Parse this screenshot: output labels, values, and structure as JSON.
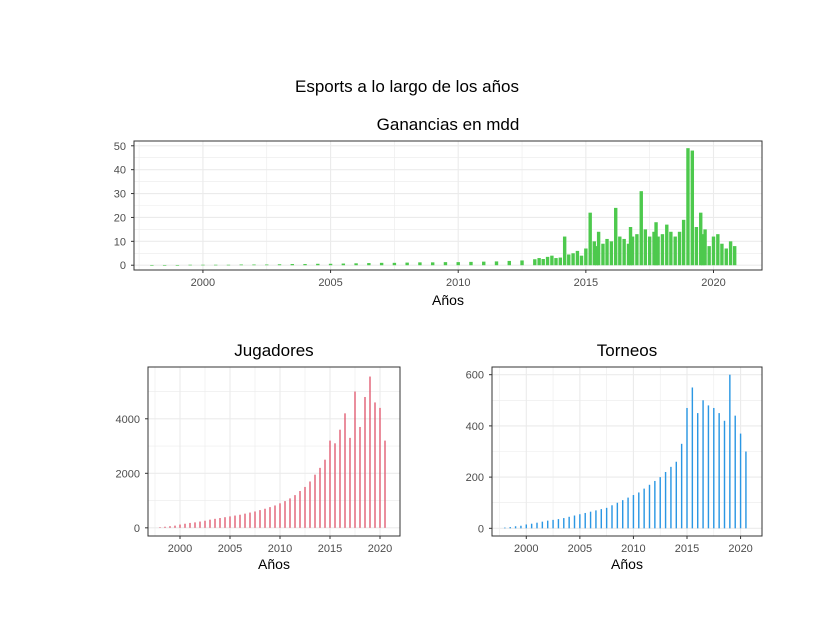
{
  "figure": {
    "title": "Esports a lo largo de los años"
  },
  "colors": {
    "ganancias": "#4dc94d",
    "jugadores": "#e0566c",
    "torneos": "#2b97e3",
    "grid": "#ebebeb",
    "panel_border": "#333333"
  },
  "chart_data": [
    {
      "type": "bar",
      "id": "ganancias",
      "title": "Ganancias en mdd",
      "xlabel": "Años",
      "ylabel": "",
      "xlim": [
        1997.3,
        2021.9
      ],
      "ylim": [
        -2,
        52
      ],
      "x_ticks": [
        2000,
        2005,
        2010,
        2015,
        2020
      ],
      "x_tick_labels": [
        "2000",
        "2005",
        "2010",
        "2015",
        "2020"
      ],
      "y_ticks": [
        0,
        10,
        20,
        30,
        40,
        50
      ],
      "y_tick_labels": [
        "0",
        "10",
        "20",
        "30",
        "40",
        "50"
      ],
      "grid": true,
      "bar_width_years": 0.0833,
      "series": [
        {
          "x": [
            1998.0,
            1998.5,
            1999.0,
            1999.5,
            2000.0,
            2000.5,
            2001.0,
            2001.5,
            2002.0,
            2002.5,
            2003.0,
            2003.5,
            2004.0,
            2004.5,
            2005.0,
            2005.5,
            2006.0,
            2006.5,
            2007.0,
            2007.5,
            2008.0,
            2008.5,
            2009.0,
            2009.5,
            2010.0,
            2010.5,
            2011.0,
            2011.5,
            2012.0,
            2012.5,
            2013.0,
            2013.17,
            2013.33,
            2013.5,
            2013.67,
            2013.83,
            2014.0,
            2014.17,
            2014.33,
            2014.5,
            2014.67,
            2014.83,
            2015.0,
            2015.17,
            2015.33,
            2015.42,
            2015.5,
            2015.67,
            2015.83,
            2016.0,
            2016.17,
            2016.33,
            2016.5,
            2016.67,
            2016.75,
            2016.83,
            2017.0,
            2017.17,
            2017.33,
            2017.5,
            2017.67,
            2017.75,
            2017.83,
            2018.0,
            2018.17,
            2018.33,
            2018.5,
            2018.67,
            2018.83,
            2019.0,
            2019.17,
            2019.33,
            2019.5,
            2019.58,
            2019.67,
            2019.83,
            2020.0,
            2020.17,
            2020.33,
            2020.5,
            2020.67,
            2020.83
          ],
          "values": [
            0.1,
            0.1,
            0.1,
            0.2,
            0.2,
            0.2,
            0.2,
            0.3,
            0.3,
            0.3,
            0.4,
            0.5,
            0.5,
            0.6,
            0.6,
            0.7,
            0.8,
            0.9,
            1.0,
            1.0,
            1.1,
            1.2,
            1.2,
            1.3,
            1.3,
            1.4,
            1.5,
            1.6,
            1.8,
            2.0,
            2.5,
            3.0,
            2.6,
            3.5,
            4.0,
            3.0,
            3.2,
            12.0,
            4.5,
            5.0,
            6.0,
            4.0,
            7.0,
            22.0,
            10.0,
            8.0,
            14.0,
            9.0,
            11.0,
            10.0,
            24.0,
            12.0,
            11.0,
            9.0,
            16.0,
            12.0,
            13.0,
            31.0,
            15.0,
            12.0,
            14.0,
            18.0,
            12.0,
            13.0,
            17.0,
            14.0,
            12.0,
            14.0,
            19.0,
            49.0,
            48.0,
            16.0,
            22.0,
            13.0,
            15.0,
            8.0,
            12.0,
            13.0,
            9.0,
            7.0,
            10.0,
            8.0
          ]
        }
      ]
    },
    {
      "type": "bar",
      "id": "jugadores",
      "title": "Jugadores",
      "xlabel": "Años",
      "ylabel": "",
      "xlim": [
        1996.8,
        2022.0
      ],
      "ylim": [
        -300,
        5900
      ],
      "x_ticks": [
        2000,
        2005,
        2010,
        2015,
        2020
      ],
      "x_tick_labels": [
        "2000",
        "2005",
        "2010",
        "2015",
        "2020"
      ],
      "y_ticks": [
        0,
        2000,
        4000
      ],
      "y_tick_labels": [
        "0",
        "2000",
        "4000"
      ],
      "grid": true,
      "bar_width_years": 0.0833,
      "series": [
        {
          "x": [
            1998.0,
            1998.5,
            1999.0,
            1999.5,
            2000.0,
            2000.5,
            2001.0,
            2001.5,
            2002.0,
            2002.5,
            2003.0,
            2003.5,
            2004.0,
            2004.5,
            2005.0,
            2005.5,
            2006.0,
            2006.5,
            2007.0,
            2007.5,
            2008.0,
            2008.5,
            2009.0,
            2009.5,
            2010.0,
            2010.5,
            2011.0,
            2011.5,
            2012.0,
            2012.5,
            2013.0,
            2013.5,
            2014.0,
            2014.5,
            2015.0,
            2015.5,
            2016.0,
            2016.5,
            2017.0,
            2017.5,
            2018.0,
            2018.5,
            2019.0,
            2019.5,
            2020.0,
            2020.5
          ],
          "values": [
            20,
            40,
            60,
            80,
            120,
            150,
            180,
            200,
            230,
            260,
            300,
            330,
            360,
            390,
            420,
            450,
            480,
            520,
            560,
            600,
            650,
            700,
            760,
            820,
            900,
            980,
            1080,
            1200,
            1350,
            1500,
            1700,
            1950,
            2200,
            2500,
            3200,
            3100,
            3600,
            4200,
            3300,
            5000,
            3700,
            4800,
            5550,
            4600,
            4400,
            3200
          ]
        }
      ]
    },
    {
      "type": "bar",
      "id": "torneos",
      "title": "Torneos",
      "xlabel": "Años",
      "ylabel": "",
      "xlim": [
        1996.8,
        2022.0
      ],
      "ylim": [
        -30,
        630
      ],
      "x_ticks": [
        2000,
        2005,
        2010,
        2015,
        2020
      ],
      "x_tick_labels": [
        "2000",
        "2005",
        "2010",
        "2015",
        "2020"
      ],
      "y_ticks": [
        0,
        200,
        400,
        600
      ],
      "y_tick_labels": [
        "0",
        "200",
        "400",
        "600"
      ],
      "grid": true,
      "bar_width_years": 0.0833,
      "series": [
        {
          "x": [
            1998.0,
            1998.5,
            1999.0,
            1999.5,
            2000.0,
            2000.5,
            2001.0,
            2001.5,
            2002.0,
            2002.5,
            2003.0,
            2003.5,
            2004.0,
            2004.5,
            2005.0,
            2005.5,
            2006.0,
            2006.5,
            2007.0,
            2007.5,
            2008.0,
            2008.5,
            2009.0,
            2009.5,
            2010.0,
            2010.5,
            2011.0,
            2011.5,
            2012.0,
            2012.5,
            2013.0,
            2013.5,
            2014.0,
            2014.5,
            2015.0,
            2015.5,
            2016.0,
            2016.5,
            2017.0,
            2017.5,
            2018.0,
            2018.5,
            2019.0,
            2019.5,
            2020.0,
            2020.5
          ],
          "values": [
            3,
            5,
            8,
            10,
            15,
            18,
            22,
            26,
            30,
            33,
            36,
            40,
            45,
            50,
            55,
            60,
            65,
            70,
            75,
            80,
            90,
            100,
            110,
            120,
            130,
            140,
            155,
            170,
            185,
            200,
            220,
            240,
            260,
            330,
            470,
            550,
            450,
            500,
            480,
            470,
            450,
            420,
            600,
            440,
            370,
            300
          ]
        }
      ]
    }
  ]
}
